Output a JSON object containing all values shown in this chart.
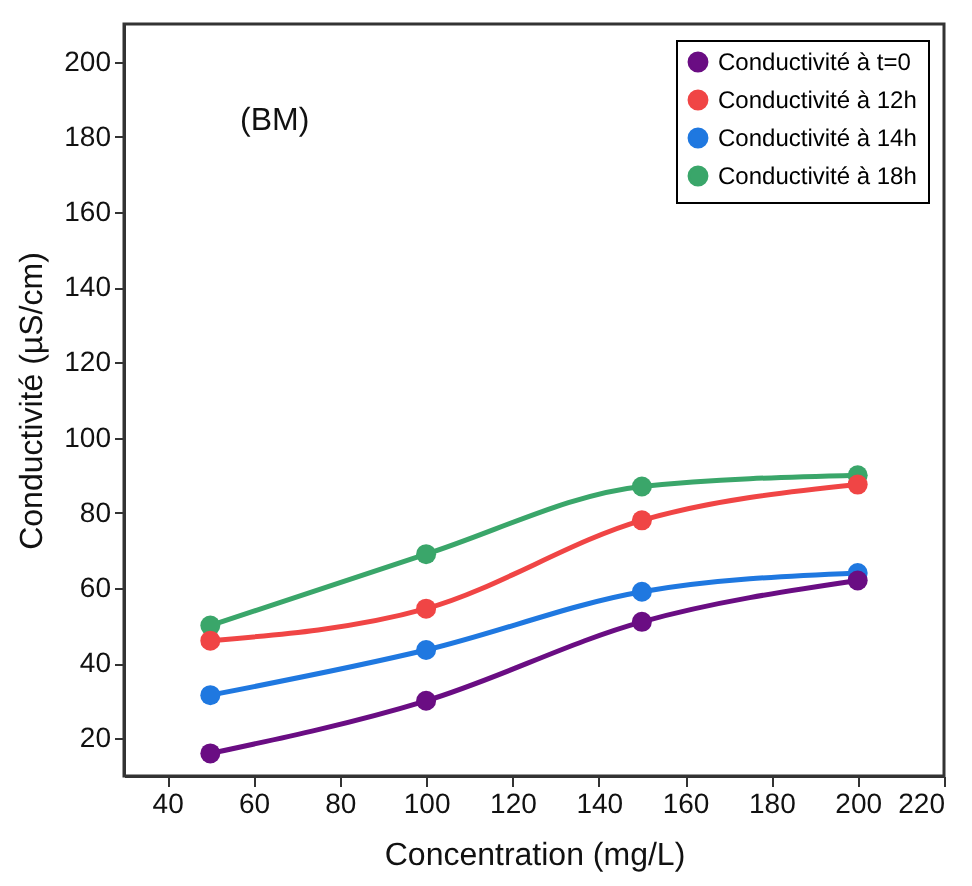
{
  "chart_data": {
    "type": "line",
    "xlabel": "Concentration (mg/L)",
    "ylabel": "Conductivité (µS/cm)",
    "annotations": [
      "(BM)"
    ],
    "x": [
      50,
      100,
      150,
      200
    ],
    "series": [
      {
        "name": "Conductivité à t=0",
        "color": "#6a0d83",
        "values": [
          16,
          30,
          51,
          62
        ]
      },
      {
        "name": "Conductivité à 12h",
        "color": "#f04545",
        "values": [
          46,
          54.5,
          78,
          87.5
        ]
      },
      {
        "name": "Conductivité à 14h",
        "color": "#1f78e0",
        "values": [
          31.5,
          43.5,
          59,
          64
        ]
      },
      {
        "name": "Conductivité à 18h",
        "color": "#3aa66a",
        "values": [
          50,
          69,
          87,
          90
        ]
      }
    ],
    "xlim": [
      30,
      220
    ],
    "xticks": [
      40,
      60,
      80,
      100,
      120,
      140,
      160,
      180,
      200,
      220
    ],
    "ylim": [
      10,
      210
    ],
    "yticks": [
      20,
      40,
      60,
      80,
      100,
      120,
      140,
      160,
      180,
      200
    ],
    "legend": "top right",
    "marker": "circle",
    "grid": false
  }
}
